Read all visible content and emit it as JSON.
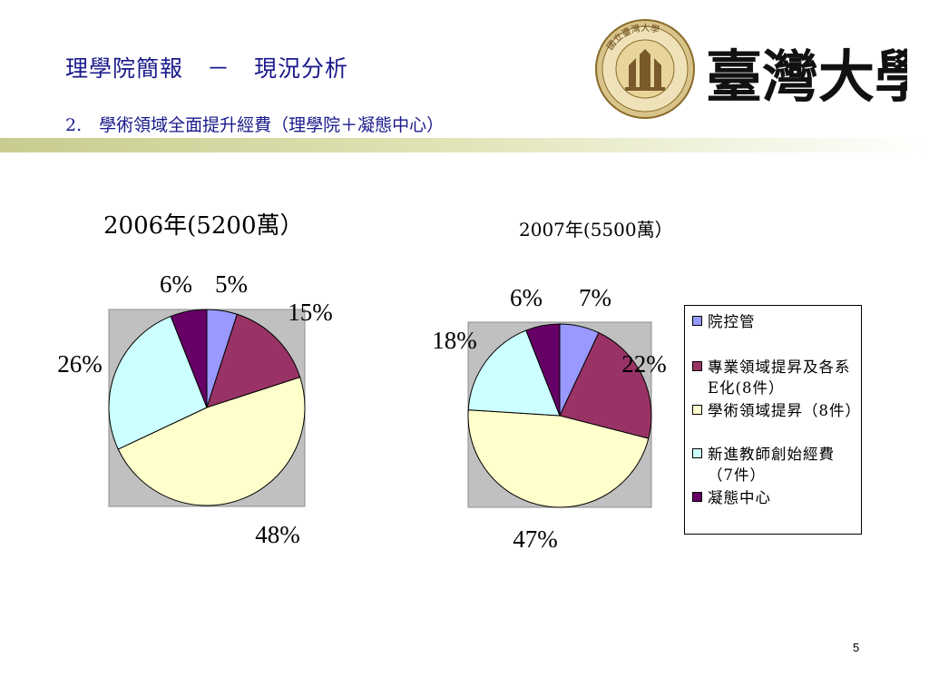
{
  "slide": {
    "title": "理學院簡報　－　現況分析",
    "subtitle": "2.　學術領域全面提升經費（理學院＋凝態中心）",
    "page_number": "5"
  },
  "logo": {
    "text": "臺灣大學",
    "seal_text": "國立臺灣大學"
  },
  "legend": {
    "items": [
      {
        "label": "院控管",
        "color": "#9999ff"
      },
      {
        "label": "專業領域提昇及各系E化(8件）",
        "color": "#993366"
      },
      {
        "label": "學術領域提昇（8件）",
        "color": "#ffffcc"
      },
      {
        "label": "新進教師創始經費（7件）",
        "color": "#ccffff"
      },
      {
        "label": "凝態中心",
        "color": "#660066"
      }
    ]
  },
  "chart_data": [
    {
      "type": "pie",
      "title": "2006年(5200萬）",
      "categories": [
        "院控管",
        "專業領域提昇及各系E化(8件）",
        "學術領域提昇（8件）",
        "新進教師創始經費（7件）",
        "凝態中心"
      ],
      "values": [
        5,
        15,
        48,
        26,
        6
      ],
      "data_labels": [
        "5%",
        "15%",
        "48%",
        "26%",
        "6%"
      ],
      "colors": [
        "#9999ff",
        "#993366",
        "#ffffcc",
        "#ccffff",
        "#660066"
      ],
      "plot_background": "#c0c0c0"
    },
    {
      "type": "pie",
      "title": "2007年(5500萬）",
      "categories": [
        "院控管",
        "專業領域提昇及各系E化(8件）",
        "學術領域提昇（8件）",
        "新進教師創始經費（7件）",
        "凝態中心"
      ],
      "values": [
        7,
        22,
        47,
        18,
        6
      ],
      "data_labels": [
        "7%",
        "22%",
        "47%",
        "18%",
        "6%"
      ],
      "colors": [
        "#9999ff",
        "#993366",
        "#ffffcc",
        "#ccffff",
        "#660066"
      ],
      "plot_background": "#c0c0c0"
    }
  ]
}
